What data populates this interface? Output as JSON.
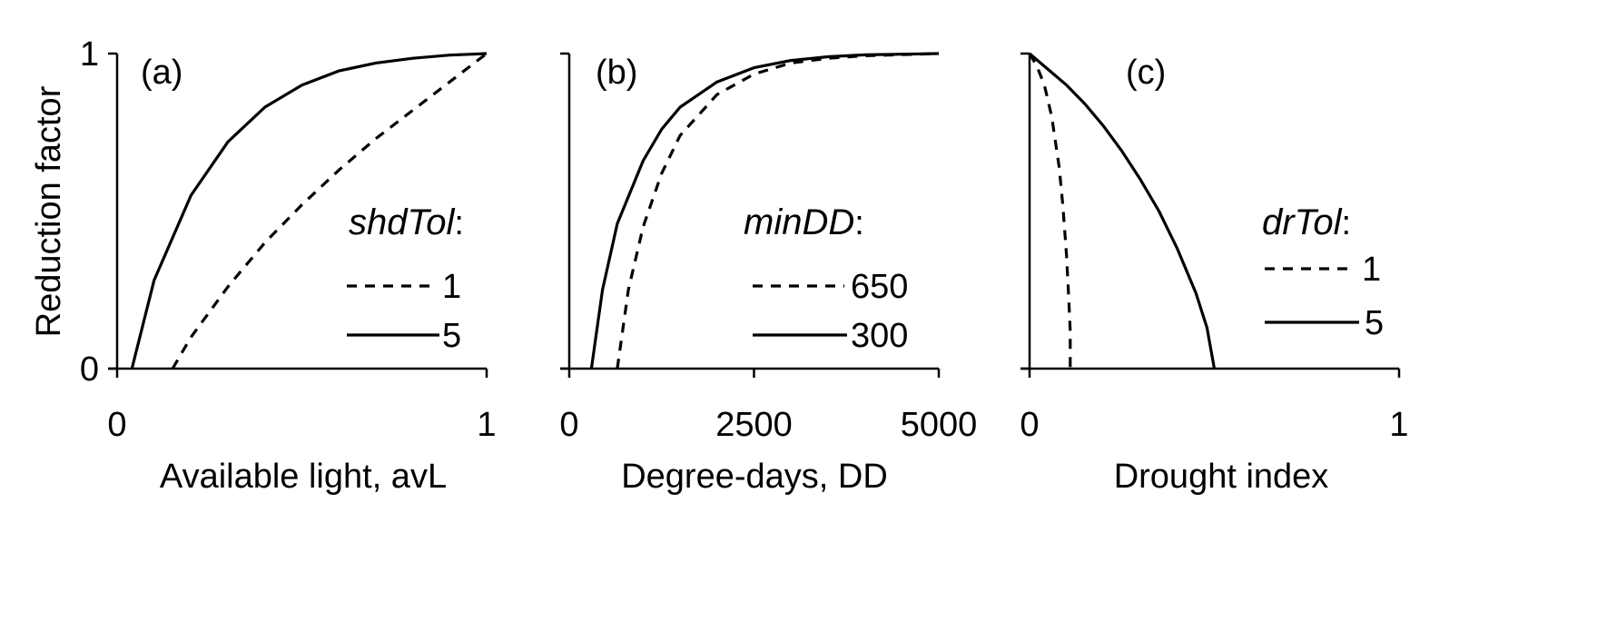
{
  "chart_data": [
    {
      "type": "line",
      "panel_label": "(a)",
      "title": "",
      "xlabel": "Available light, avL",
      "ylabel": "Reduction factor",
      "xlim": [
        0,
        1
      ],
      "ylim": [
        0,
        1
      ],
      "x_ticks": [
        "0",
        "1"
      ],
      "y_ticks": [
        "0",
        "1"
      ],
      "grid": false,
      "legend": {
        "title": "shdTol",
        "title_suffix": ":",
        "entries": [
          {
            "label": "1",
            "dash": "dashed"
          },
          {
            "label": "5",
            "dash": "solid"
          }
        ]
      },
      "series": [
        {
          "name": "1",
          "dash": "dashed",
          "x": [
            0.15,
            0.2,
            0.3,
            0.4,
            0.5,
            0.6,
            0.7,
            0.8,
            0.9,
            1.0
          ],
          "y": [
            0.0,
            0.1,
            0.26,
            0.4,
            0.52,
            0.63,
            0.73,
            0.82,
            0.91,
            1.0
          ]
        },
        {
          "name": "5",
          "dash": "solid",
          "x": [
            0.04,
            0.1,
            0.2,
            0.3,
            0.4,
            0.5,
            0.6,
            0.7,
            0.8,
            0.9,
            1.0
          ],
          "y": [
            0.0,
            0.28,
            0.55,
            0.72,
            0.83,
            0.9,
            0.945,
            0.97,
            0.985,
            0.995,
            1.0
          ]
        }
      ]
    },
    {
      "type": "line",
      "panel_label": "(b)",
      "title": "",
      "xlabel": "Degree-days, DD",
      "ylabel": "",
      "xlim": [
        0,
        5000
      ],
      "ylim": [
        0,
        1
      ],
      "x_ticks": [
        "0",
        "2500",
        "5000"
      ],
      "y_ticks": [],
      "grid": false,
      "legend": {
        "title": "minDD",
        "title_suffix": ":",
        "entries": [
          {
            "label": "650",
            "dash": "dashed"
          },
          {
            "label": "300",
            "dash": "solid"
          }
        ]
      },
      "series": [
        {
          "name": "650",
          "dash": "dashed",
          "x": [
            650,
            800,
            1000,
            1250,
            1500,
            2000,
            2500,
            3000,
            3500,
            4000,
            5000
          ],
          "y": [
            0.0,
            0.25,
            0.45,
            0.62,
            0.74,
            0.87,
            0.935,
            0.97,
            0.985,
            0.993,
            1.0
          ]
        },
        {
          "name": "300",
          "dash": "solid",
          "x": [
            300,
            450,
            650,
            1000,
            1250,
            1500,
            2000,
            2500,
            3000,
            3500,
            4000,
            5000
          ],
          "y": [
            0.0,
            0.25,
            0.46,
            0.66,
            0.76,
            0.83,
            0.91,
            0.955,
            0.978,
            0.99,
            0.996,
            1.0
          ]
        }
      ]
    },
    {
      "type": "line",
      "panel_label": "(c)",
      "title": "",
      "xlabel": "Drought index",
      "ylabel": "",
      "xlim": [
        0,
        1
      ],
      "ylim": [
        0,
        1
      ],
      "x_ticks": [
        "0",
        "1"
      ],
      "y_ticks": [],
      "grid": false,
      "legend": {
        "title": "drTol",
        "title_suffix": ":",
        "entries": [
          {
            "label": "1",
            "dash": "dashed"
          },
          {
            "label": "5",
            "dash": "solid"
          }
        ]
      },
      "series": [
        {
          "name": "1",
          "dash": "dashed",
          "x": [
            0.0,
            0.02,
            0.04,
            0.06,
            0.08,
            0.09,
            0.1,
            0.105,
            0.11,
            0.11
          ],
          "y": [
            1.0,
            0.96,
            0.9,
            0.8,
            0.64,
            0.52,
            0.36,
            0.25,
            0.12,
            0.0
          ]
        },
        {
          "name": "5",
          "dash": "solid",
          "x": [
            0.0,
            0.05,
            0.1,
            0.15,
            0.2,
            0.25,
            0.3,
            0.35,
            0.4,
            0.45,
            0.48,
            0.5
          ],
          "y": [
            1.0,
            0.95,
            0.9,
            0.84,
            0.77,
            0.69,
            0.6,
            0.5,
            0.38,
            0.24,
            0.13,
            0.0
          ]
        }
      ]
    }
  ]
}
